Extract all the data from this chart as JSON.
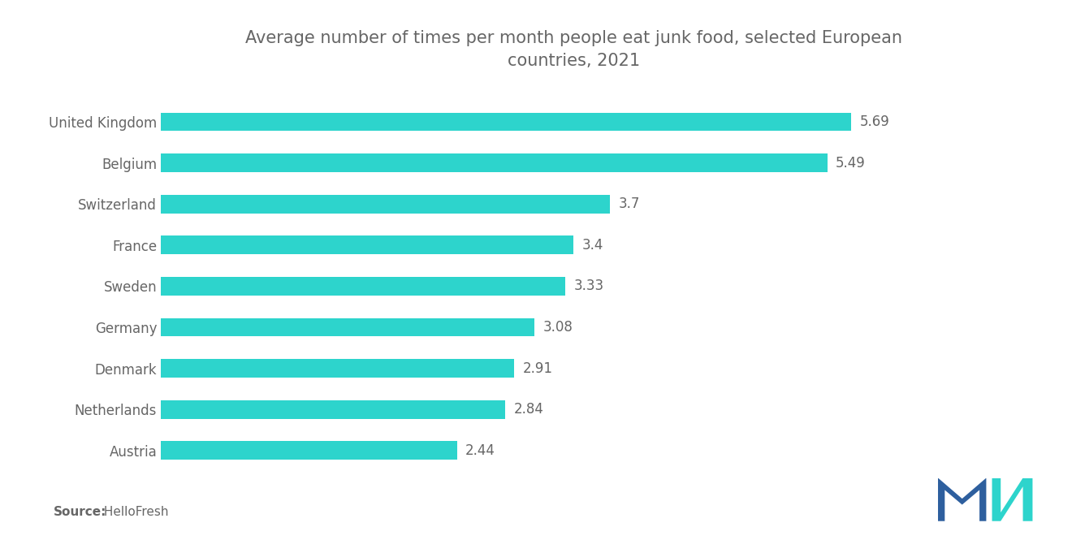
{
  "title": "Average number of times per month people eat junk food, selected European\ncountries, 2021",
  "title_fontsize": 15,
  "title_color": "#666666",
  "source_label": "Source:",
  "source_text": " HelloFresh",
  "categories": [
    "Austria",
    "Netherlands",
    "Denmark",
    "Germany",
    "Sweden",
    "France",
    "Switzerland",
    "Belgium",
    "United Kingdom"
  ],
  "values": [
    2.44,
    2.84,
    2.91,
    3.08,
    3.33,
    3.4,
    3.7,
    5.49,
    5.69
  ],
  "bar_color": "#2DD4CC",
  "label_color": "#666666",
  "label_fontsize": 12,
  "ytick_fontsize": 12,
  "ytick_color": "#666666",
  "background_color": "#ffffff",
  "xlim_max": 6.8,
  "bar_height": 0.45,
  "logo_color_blue": "#2E5F9E",
  "logo_color_teal": "#2DD4CC"
}
